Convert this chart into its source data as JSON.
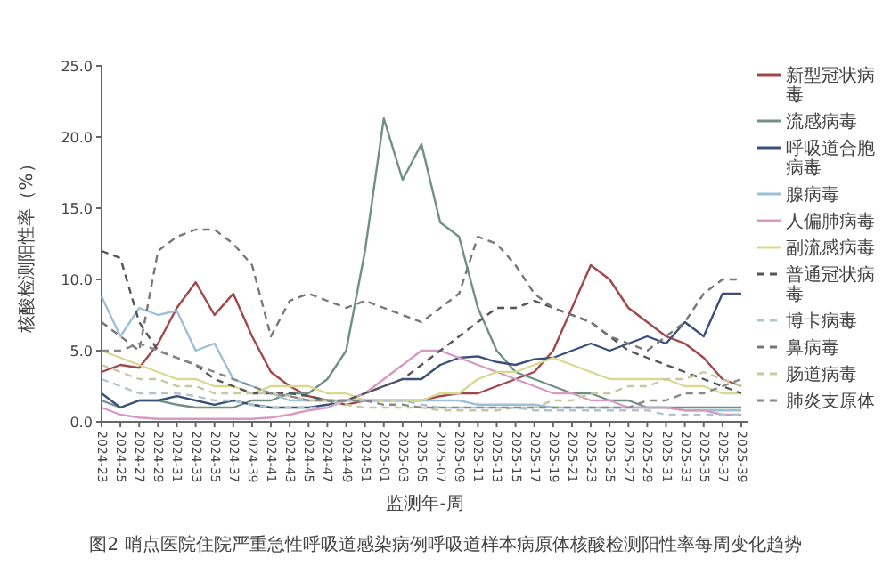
{
  "chart_data": {
    "type": "line",
    "xlabel": "监测年-周",
    "ylabel": "核酸检测阳性率（%）",
    "annotations": [
      "图2 哨点医院住院严重急性呼吸道感染病例呼吸道样本病原体核酸检测阳性率每周变化趋势"
    ],
    "categories": [
      "2024-23",
      "2024-25",
      "2024-27",
      "2024-29",
      "2024-31",
      "2024-33",
      "2024-35",
      "2024-37",
      "2024-39",
      "2024-41",
      "2024-43",
      "2024-45",
      "2024-47",
      "2024-49",
      "2024-51",
      "2025-01",
      "2025-03",
      "2025-05",
      "2025-07",
      "2025-09",
      "2025-11",
      "2025-13",
      "2025-15",
      "2025-17",
      "2025-19",
      "2025-21",
      "2025-23",
      "2025-25",
      "2025-27",
      "2025-29",
      "2025-31",
      "2025-33",
      "2025-35",
      "2025-37",
      "2025-39"
    ],
    "ylim": [
      0,
      25
    ],
    "yticks": [
      {
        "value": 0,
        "label": "0.0"
      },
      {
        "value": 5,
        "label": "5.0"
      },
      {
        "value": 10,
        "label": "10.0"
      },
      {
        "value": 15,
        "label": "15.0"
      },
      {
        "value": 20,
        "label": "20.0"
      },
      {
        "value": 25,
        "label": "25.0"
      }
    ],
    "legend": "right",
    "grid": false,
    "marker": "none",
    "series": [
      {
        "name": "新型冠状病毒",
        "color": "#a0474a",
        "line_style": "solid",
        "values": [
          3.5,
          4,
          3.8,
          5.5,
          8,
          9.8,
          7.5,
          9,
          6,
          3.5,
          2.5,
          1.8,
          1.5,
          1.2,
          1.5,
          1.5,
          1.5,
          1.5,
          1.8,
          2,
          2,
          2.5,
          3,
          3.5,
          5,
          8,
          11,
          10,
          8,
          7,
          6,
          5.5,
          4.5,
          3,
          2.5
        ]
      },
      {
        "name": "流感病毒",
        "color": "#6f8f87",
        "line_style": "solid",
        "values": [
          1.5,
          1,
          1.5,
          1.5,
          1.2,
          1,
          1,
          1,
          1.5,
          1.5,
          2,
          2,
          3,
          5,
          12,
          21.3,
          17,
          19.5,
          14,
          13,
          8,
          5,
          3.5,
          3,
          2.5,
          2,
          2,
          1.5,
          1.5,
          1,
          1,
          1,
          1,
          1,
          1
        ]
      },
      {
        "name": "呼吸道合胞病毒",
        "color": "#3b4f78",
        "line_style": "solid",
        "values": [
          2,
          1,
          1.5,
          1.5,
          1.8,
          1.5,
          1.2,
          1.5,
          1.2,
          1,
          1,
          1,
          1.2,
          1.5,
          2,
          2.5,
          3,
          3,
          4,
          4.5,
          4.6,
          4.2,
          4,
          4.4,
          4.5,
          5,
          5.5,
          5,
          5.5,
          6,
          5.5,
          7,
          6,
          9,
          9
        ]
      },
      {
        "name": "腺病毒",
        "color": "#9dbfd8",
        "line_style": "solid",
        "values": [
          8.8,
          6,
          8,
          7.5,
          7.8,
          5,
          5.5,
          3,
          2.5,
          2,
          1.5,
          1.5,
          1.5,
          1.5,
          1.5,
          1.5,
          1.5,
          1.5,
          1.5,
          1.5,
          1.2,
          1.2,
          1.2,
          1.2,
          1,
          1,
          1,
          1,
          1,
          1,
          1,
          0.8,
          0.8,
          0.8,
          0.8
        ]
      },
      {
        "name": "人偏肺病毒",
        "color": "#d59ac0",
        "line_style": "solid",
        "values": [
          1,
          0.5,
          0.3,
          0.2,
          0.2,
          0.2,
          0.2,
          0.2,
          0.2,
          0.3,
          0.5,
          0.8,
          1,
          1.5,
          2,
          3,
          4,
          5,
          5,
          4.5,
          4,
          3.5,
          3,
          2.5,
          2,
          2,
          1.5,
          1.5,
          1,
          1,
          1,
          0.8,
          0.8,
          0.5,
          0.5
        ]
      },
      {
        "name": "副流感病毒",
        "color": "#d8d890",
        "line_style": "solid",
        "values": [
          5,
          4.5,
          4,
          3.5,
          3,
          3,
          2.5,
          2.5,
          2,
          2.5,
          2.5,
          2.5,
          2,
          2,
          1.5,
          1.5,
          1.5,
          1.5,
          2,
          2,
          3,
          3.5,
          3.5,
          4,
          4.5,
          4,
          3.5,
          3,
          3,
          3,
          3,
          2.5,
          2.5,
          2,
          2
        ]
      },
      {
        "name": "普通冠状病毒",
        "color": "#555555",
        "line_style": "dashed",
        "values": [
          12,
          11.5,
          7,
          5,
          4.5,
          4,
          3,
          2.5,
          2,
          2,
          2,
          1.8,
          1.5,
          1.5,
          2,
          2.5,
          3,
          4,
          5,
          6,
          7,
          8,
          8,
          8.5,
          8,
          7.5,
          7,
          6,
          5,
          4.5,
          4,
          3.5,
          3,
          2.5,
          2
        ]
      },
      {
        "name": "博卡病毒",
        "color": "#b0c4d0",
        "line_style": "dashed",
        "values": [
          3,
          2.5,
          2,
          2,
          2,
          1.8,
          1.5,
          1.5,
          1.2,
          1,
          1,
          1,
          1,
          1.5,
          1.5,
          1.5,
          1.5,
          1.2,
          1,
          1,
          1,
          1,
          1,
          0.8,
          0.8,
          0.8,
          0.8,
          0.8,
          0.8,
          0.8,
          0.5,
          0.5,
          0.5,
          0.5,
          0.5
        ]
      },
      {
        "name": "鼻病毒",
        "color": "#777777",
        "line_style": "dashed",
        "values": [
          7,
          6,
          5,
          12,
          13,
          13.5,
          13.5,
          12.5,
          11,
          6,
          8.5,
          9,
          8.5,
          8,
          8.5,
          8,
          7.5,
          7,
          8,
          9,
          13,
          12.5,
          11,
          9,
          8,
          7.5,
          7,
          6,
          5.5,
          5,
          6,
          7,
          9,
          10,
          10
        ]
      },
      {
        "name": "肠道病毒",
        "color": "#c8c8a0",
        "line_style": "dashed",
        "values": [
          4,
          3.5,
          3,
          3,
          2.5,
          2.5,
          2,
          2,
          2,
          2,
          1.8,
          1.5,
          1.5,
          1.2,
          1,
          1,
          1,
          1,
          0.8,
          0.8,
          0.8,
          0.8,
          1,
          1,
          1.5,
          1.5,
          2,
          2,
          2.5,
          2.5,
          3,
          3,
          3.5,
          3,
          2.5
        ]
      },
      {
        "name": "肺炎支原体",
        "color": "#888888",
        "line_style": "dashed",
        "values": [
          5,
          5,
          5.5,
          5,
          4.5,
          4,
          3.5,
          3,
          2.5,
          2,
          1.8,
          1.5,
          1.5,
          1.5,
          1.5,
          1.2,
          1.2,
          1,
          1,
          1,
          1,
          1,
          1,
          1,
          1,
          1,
          1,
          1,
          1,
          1.5,
          1.5,
          2,
          2,
          2.5,
          3
        ]
      }
    ]
  }
}
